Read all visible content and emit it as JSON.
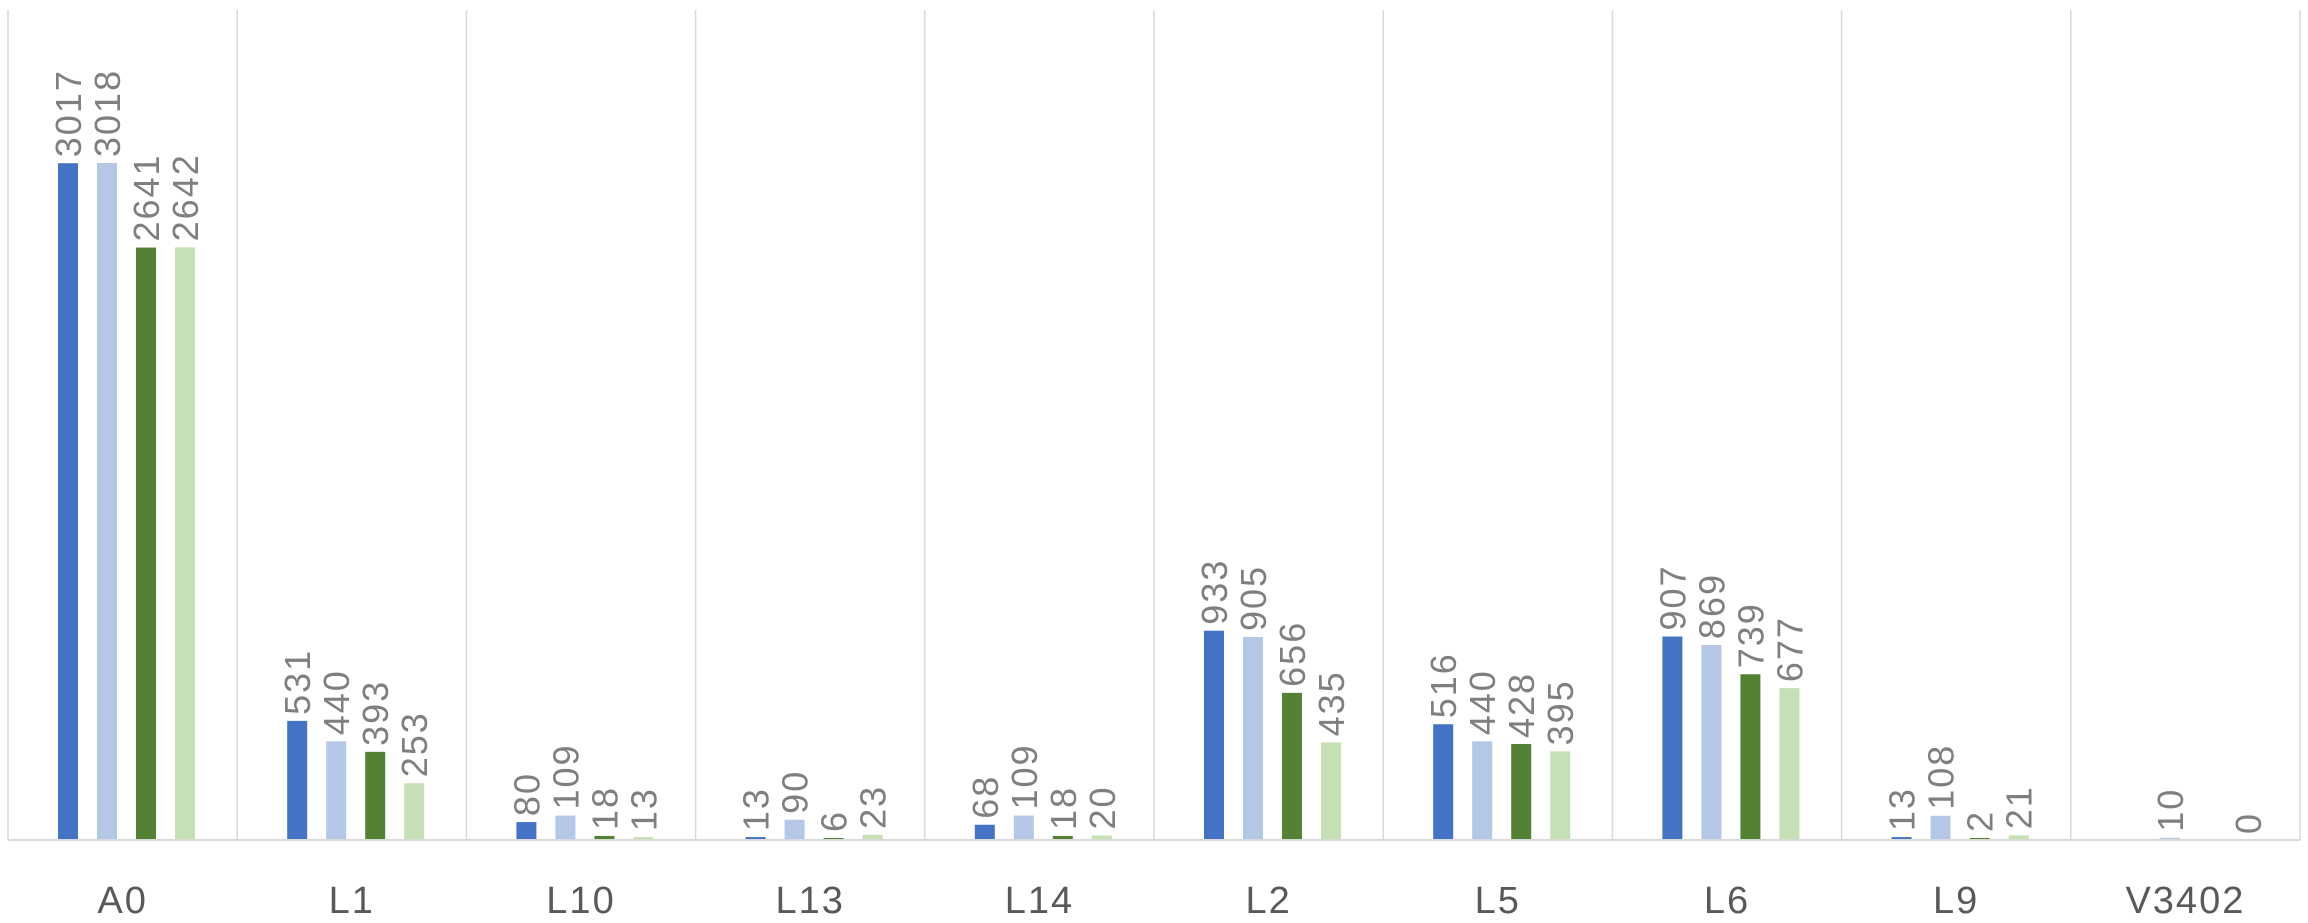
{
  "chart_data": {
    "type": "bar",
    "title": "",
    "xlabel": "",
    "ylabel": "",
    "ylim": [
      0,
      3700
    ],
    "grid": "vertical-category-separators",
    "legend": "none",
    "categories": [
      "A0",
      "L1",
      "L10",
      "L13",
      "L14",
      "L2",
      "L5",
      "L6",
      "L9",
      "V3402"
    ],
    "series": [
      {
        "color": "#4472c4",
        "values": [
          3017,
          531,
          80,
          13,
          68,
          933,
          516,
          907,
          13,
          null
        ]
      },
      {
        "color": "#b4c7e7",
        "values": [
          3018,
          440,
          109,
          90,
          109,
          905,
          440,
          869,
          108,
          10
        ]
      },
      {
        "color": "#548235",
        "values": [
          2641,
          393,
          18,
          6,
          18,
          656,
          428,
          739,
          2,
          null
        ]
      },
      {
        "color": "#c5e0b4",
        "values": [
          2642,
          253,
          13,
          23,
          20,
          435,
          395,
          677,
          21,
          0
        ]
      }
    ]
  }
}
